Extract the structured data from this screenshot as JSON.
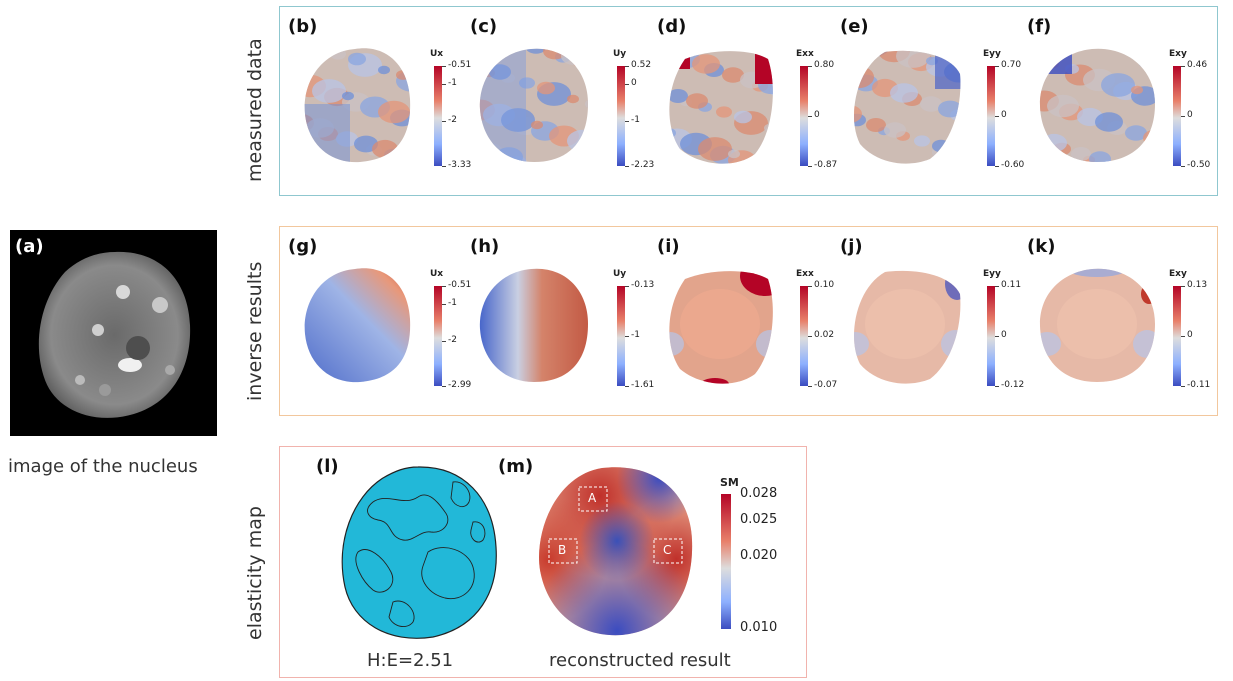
{
  "panel_a": {
    "tag": "(a)",
    "caption": "image of the nucleus"
  },
  "rows": {
    "measured": "measured data",
    "inverse": "inverse results",
    "elasticity": "elasticity map"
  },
  "measured_panels": [
    {
      "tag": "(b)",
      "field": "Ux",
      "ticks": [
        "-0.51",
        "-1",
        "-2",
        "-3.33"
      ]
    },
    {
      "tag": "(c)",
      "field": "Uy",
      "ticks": [
        "0.52",
        "0",
        "-1",
        "-2.23"
      ]
    },
    {
      "tag": "(d)",
      "field": "Exx",
      "ticks": [
        "0.80",
        "0",
        "-0.87"
      ]
    },
    {
      "tag": "(e)",
      "field": "Eyy",
      "ticks": [
        "0.70",
        "0",
        "-0.60"
      ]
    },
    {
      "tag": "(f)",
      "field": "Exy",
      "ticks": [
        "0.46",
        "0",
        "-0.50"
      ]
    }
  ],
  "inverse_panels": [
    {
      "tag": "(g)",
      "field": "Ux",
      "ticks": [
        "-0.51",
        "-1",
        "-2",
        "-2.99"
      ]
    },
    {
      "tag": "(h)",
      "field": "Uy",
      "ticks": [
        "-0.13",
        "-1",
        "-1.61"
      ]
    },
    {
      "tag": "(i)",
      "field": "Exx",
      "ticks": [
        "0.10",
        "0.02",
        "-0.07"
      ]
    },
    {
      "tag": "(j)",
      "field": "Eyy",
      "ticks": [
        "0.11",
        "0",
        "-0.12"
      ]
    },
    {
      "tag": "(k)",
      "field": "Exy",
      "ticks": [
        "0.13",
        "0",
        "-0.11"
      ]
    }
  ],
  "panel_l": {
    "tag": "(l)",
    "caption": "H:E=2.51"
  },
  "panel_m": {
    "tag": "(m)",
    "caption": "reconstructed result",
    "colorbar_title": "SM",
    "ticks": [
      "0.028",
      "0.025",
      "0.020",
      "0.010"
    ],
    "regions": [
      "A",
      "B",
      "C"
    ]
  },
  "colors": {
    "measured_box": "#8fc7cf",
    "inverse_box": "#f2c79d",
    "elasticity_box": "#f1b3ad",
    "cmap_red": "#b40426",
    "cmap_white": "#dddddd",
    "cmap_blue": "#3b4cc0",
    "cyan_fill": "#22b8d8"
  }
}
